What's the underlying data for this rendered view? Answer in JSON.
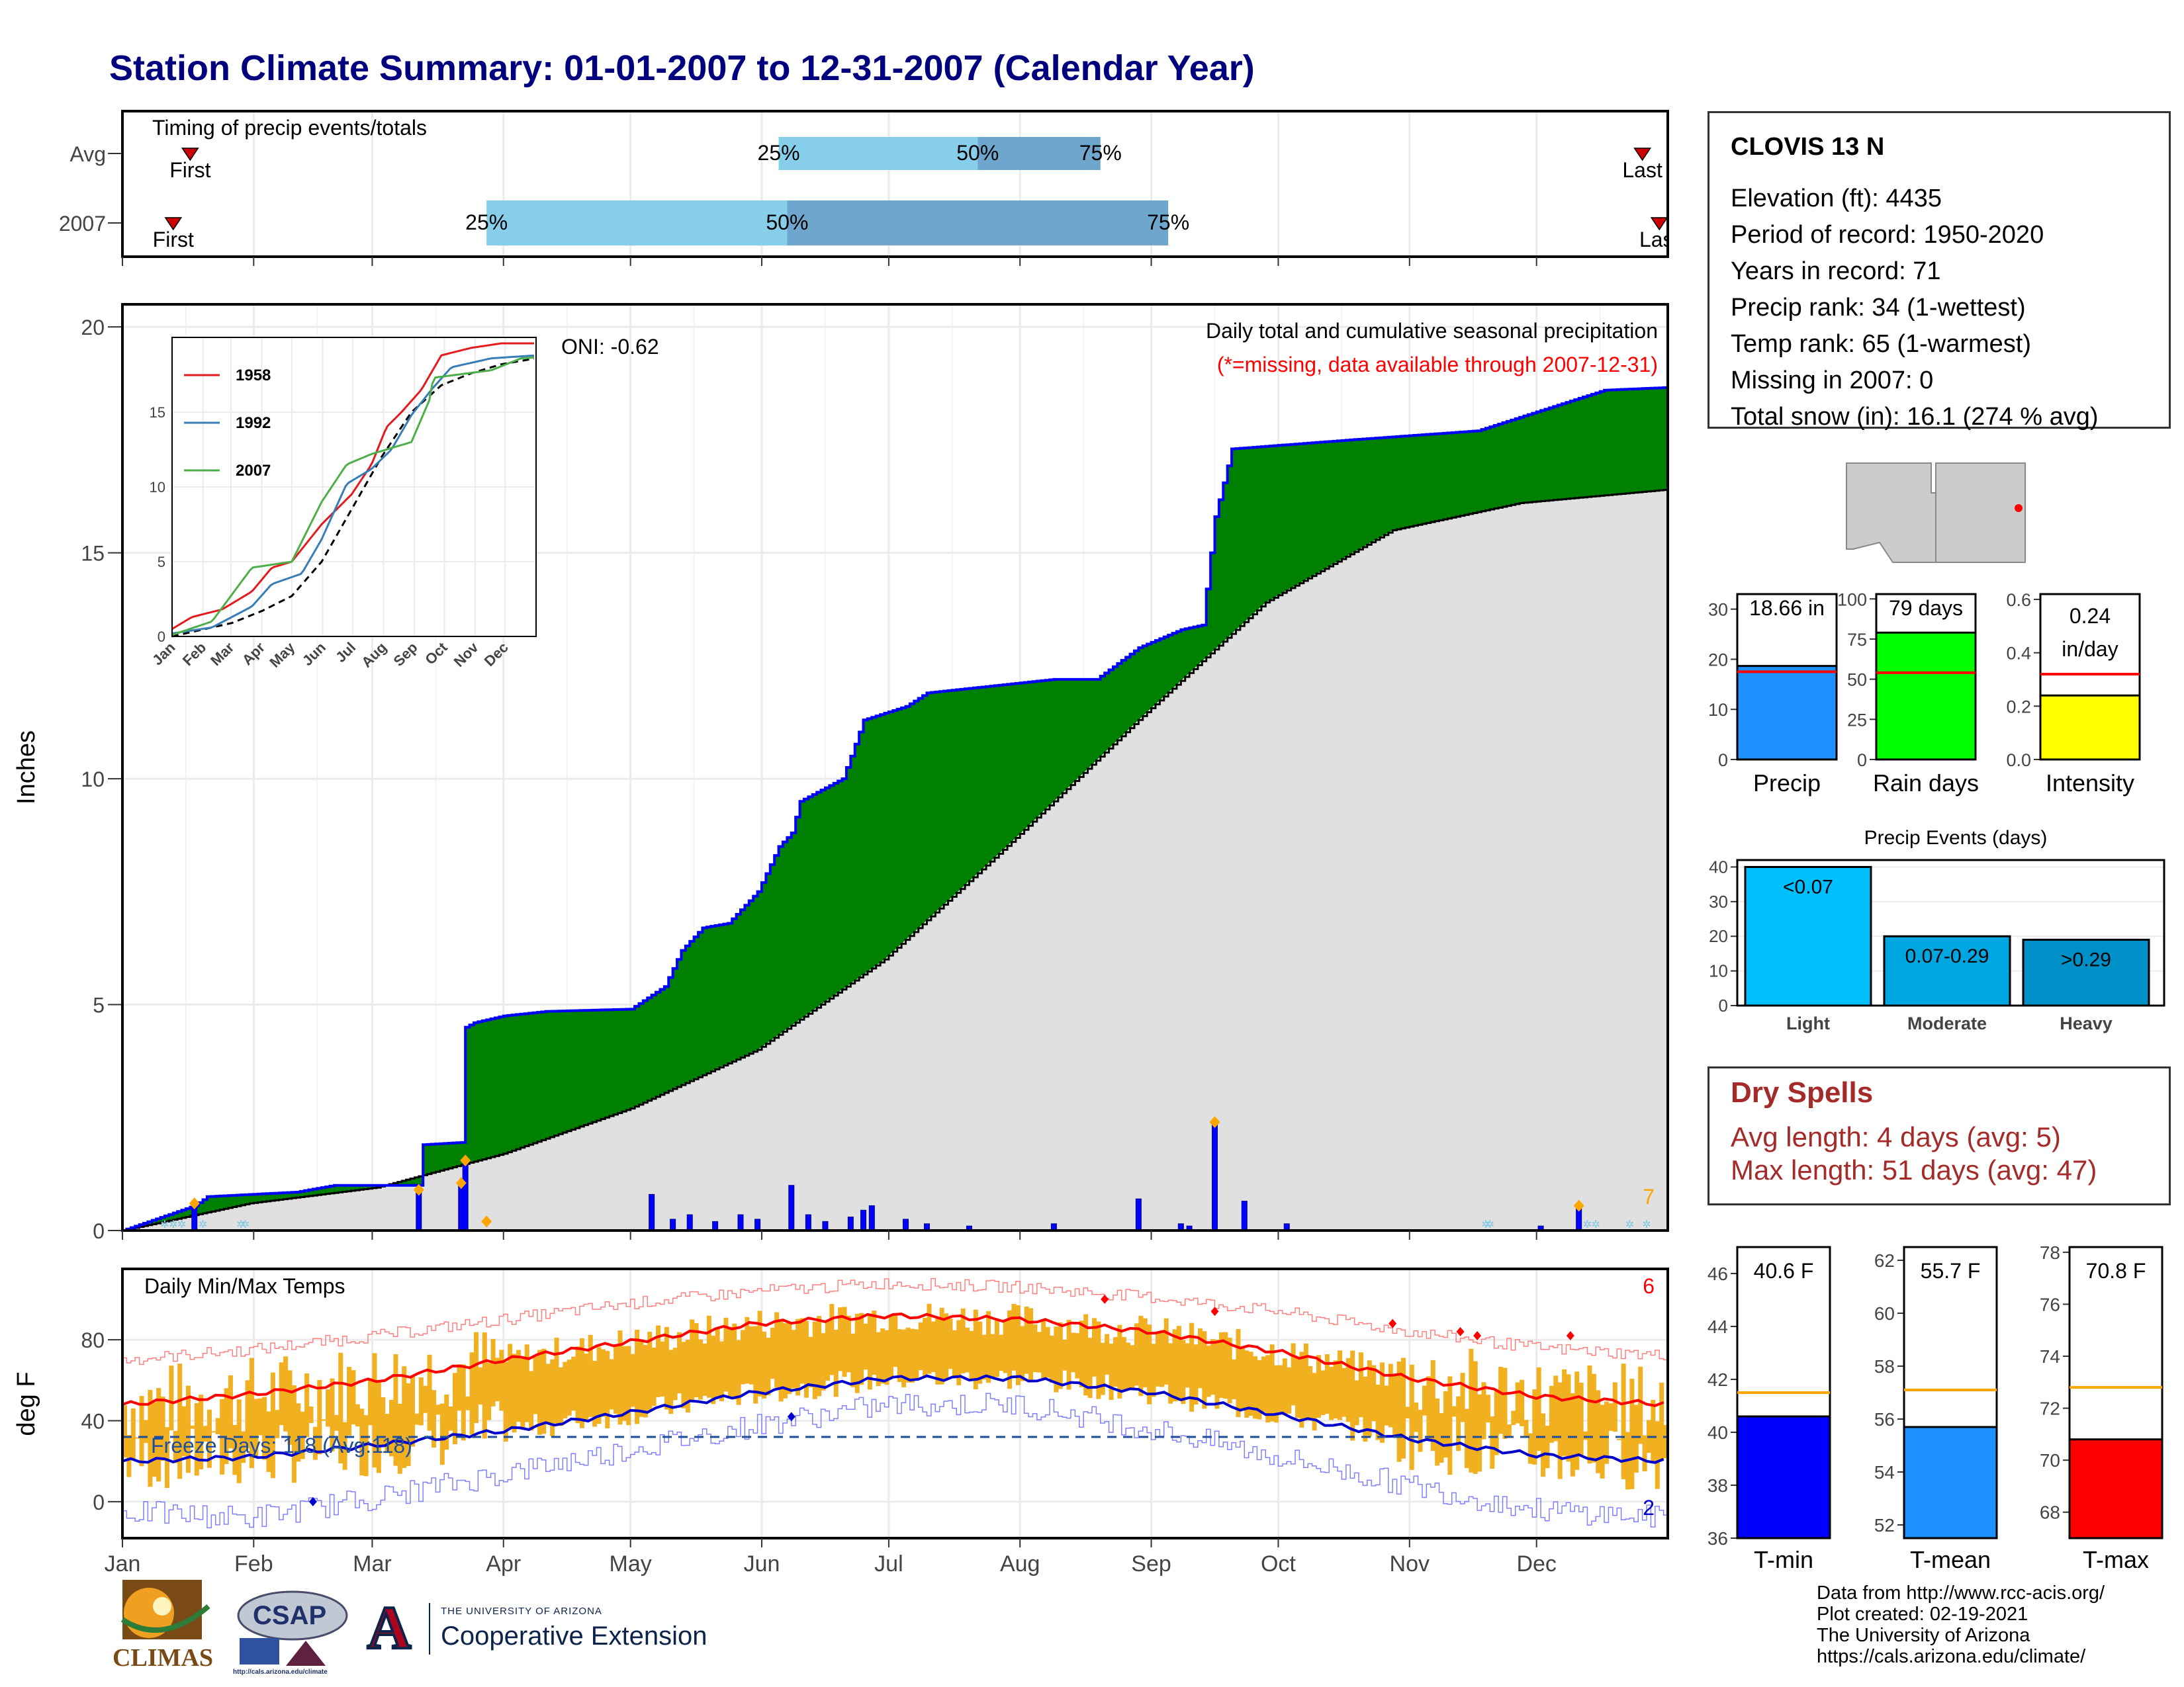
{
  "title": "Station Climate Summary: 01-01-2007 to 12-31-2007 (Calendar Year)",
  "station": {
    "name": "CLOVIS 13 N",
    "lines": [
      "Elevation (ft): 4435",
      "Period of record: 1950-2020",
      "Years in record: 71",
      "Precip rank: 34 (1-wettest)",
      "Temp rank: 65 (1-warmest)",
      "Missing in 2007: 0",
      "Total snow (in): 16.1 (274 % avg)"
    ]
  },
  "dry_spells": {
    "title": "Dry Spells",
    "avg": "Avg length: 4 days (avg: 5)",
    "max": "Max length: 51 days (avg: 47)"
  },
  "credits": [
    "Data from http://www.rcc-acis.org/",
    "Plot created: 02-19-2021",
    "The University of Arizona",
    "https://cals.arizona.edu/climate/"
  ],
  "logos": {
    "climas": "CLIMAS",
    "csap": "CSAP",
    "csap_url": "http://cals.arizona.edu/climate",
    "ua_line1": "THE UNIVERSITY OF ARIZONA",
    "ua_line2": "Cooperative Extension",
    "ua_mark": "A"
  },
  "colors": {
    "green": "#008000",
    "blue": "#0000ff",
    "orange": "#f0b020",
    "red": "#ff0000",
    "lightblue": "#87ceeb",
    "steelblue": "#6ea6cd",
    "gray": "#e0e0e0",
    "navy": "#00007f"
  },
  "chart_data": [
    {
      "id": "timing",
      "type": "bar",
      "title": "Timing of precip events/totals",
      "rows": [
        {
          "label": "Avg",
          "first_doy": 16,
          "last_doy": 359,
          "p25_doy": 155,
          "p50_doy": 202,
          "p75_doy": 231
        },
        {
          "label": "2007",
          "first_doy": 12,
          "last_doy": 363,
          "p25_doy": 86,
          "p50_doy": 157,
          "p75_doy": 247
        }
      ],
      "marker_labels": {
        "first": "First",
        "last": "Last",
        "p25": "25%",
        "p50": "50%",
        "p75": "75%"
      }
    },
    {
      "id": "precip",
      "type": "area",
      "title": "Daily total and cumulative seasonal precipitation",
      "subtitle": "(*=missing, data available through 2007-12-31)",
      "oni": "ONI: -0.62",
      "ylabel": "Inches",
      "ylim": [
        0,
        20.5
      ],
      "yticks": [
        0,
        5,
        10,
        15,
        20
      ],
      "months": [
        "Jan",
        "Feb",
        "Mar",
        "Apr",
        "May",
        "Jun",
        "Jul",
        "Aug",
        "Sep",
        "Oct",
        "Nov",
        "Dec"
      ],
      "cum_2007": [
        [
          0,
          0
        ],
        [
          17,
          0.55
        ],
        [
          20,
          0.75
        ],
        [
          41,
          0.85
        ],
        [
          50,
          1.0
        ],
        [
          70,
          1.0
        ],
        [
          71,
          1.9
        ],
        [
          80,
          1.95
        ],
        [
          81,
          4.5
        ],
        [
          83,
          4.6
        ],
        [
          90,
          4.75
        ],
        [
          100,
          4.85
        ],
        [
          120,
          4.9
        ],
        [
          128,
          5.4
        ],
        [
          132,
          6.2
        ],
        [
          137,
          6.7
        ],
        [
          143,
          6.8
        ],
        [
          145,
          7.0
        ],
        [
          150,
          7.5
        ],
        [
          155,
          8.5
        ],
        [
          158,
          8.8
        ],
        [
          160,
          9.5
        ],
        [
          166,
          9.8
        ],
        [
          170,
          10.0
        ],
        [
          172,
          10.5
        ],
        [
          175,
          11.3
        ],
        [
          185,
          11.6
        ],
        [
          190,
          11.9
        ],
        [
          200,
          12.0
        ],
        [
          210,
          12.1
        ],
        [
          220,
          12.2
        ],
        [
          230,
          12.2
        ],
        [
          240,
          12.9
        ],
        [
          250,
          13.3
        ],
        [
          255,
          13.4
        ],
        [
          258,
          15.8
        ],
        [
          262,
          17.3
        ],
        [
          290,
          17.5
        ],
        [
          320,
          17.7
        ],
        [
          350,
          18.6
        ],
        [
          365,
          18.66
        ]
      ],
      "cum_avg": [
        [
          0,
          0
        ],
        [
          30,
          0.6
        ],
        [
          60,
          0.95
        ],
        [
          90,
          1.7
        ],
        [
          120,
          2.7
        ],
        [
          150,
          4.0
        ],
        [
          180,
          6.0
        ],
        [
          210,
          8.6
        ],
        [
          240,
          11.3
        ],
        [
          270,
          13.9
        ],
        [
          300,
          15.5
        ],
        [
          330,
          16.1
        ],
        [
          365,
          16.4
        ]
      ],
      "daily": [
        [
          17,
          0.6
        ],
        [
          70,
          0.9
        ],
        [
          80,
          1.0
        ],
        [
          81,
          1.5
        ],
        [
          125,
          0.8
        ],
        [
          130,
          0.25
        ],
        [
          134,
          0.35
        ],
        [
          140,
          0.2
        ],
        [
          146,
          0.35
        ],
        [
          150,
          0.25
        ],
        [
          158,
          1.0
        ],
        [
          162,
          0.35
        ],
        [
          166,
          0.2
        ],
        [
          172,
          0.3
        ],
        [
          175,
          0.45
        ],
        [
          177,
          0.55
        ],
        [
          185,
          0.25
        ],
        [
          190,
          0.15
        ],
        [
          200,
          0.1
        ],
        [
          220,
          0.15
        ],
        [
          240,
          0.7
        ],
        [
          250,
          0.15
        ],
        [
          252,
          0.1
        ],
        [
          258,
          2.35
        ],
        [
          265,
          0.65
        ],
        [
          275,
          0.15
        ],
        [
          335,
          0.1
        ],
        [
          344,
          0.5
        ]
      ],
      "orange_count": "7",
      "inset": {
        "yticks": [
          0,
          5,
          10,
          15
        ],
        "months": [
          "Jan",
          "Feb",
          "Mar",
          "Apr",
          "May",
          "Jun",
          "Jul",
          "Aug",
          "Sep",
          "Oct",
          "Nov",
          "Dec"
        ],
        "series": [
          {
            "name": "1958",
            "color": "#e41a1c",
            "points": [
              [
                0,
                0.5
              ],
              [
                20,
                1.3
              ],
              [
                50,
                1.8
              ],
              [
                80,
                3.0
              ],
              [
                100,
                4.6
              ],
              [
                120,
                5.0
              ],
              [
                150,
                7.5
              ],
              [
                180,
                9.5
              ],
              [
                200,
                11.5
              ],
              [
                215,
                14.0
              ],
              [
                230,
                15.0
              ],
              [
                250,
                16.5
              ],
              [
                270,
                18.8
              ],
              [
                300,
                19.3
              ],
              [
                330,
                19.6
              ],
              [
                365,
                19.6
              ]
            ]
          },
          {
            "name": "1992",
            "color": "#377eb8",
            "points": [
              [
                0,
                0.2
              ],
              [
                40,
                0.6
              ],
              [
                80,
                2.0
              ],
              [
                100,
                3.5
              ],
              [
                130,
                4.2
              ],
              [
                150,
                6.5
              ],
              [
                175,
                10.2
              ],
              [
                200,
                11.2
              ],
              [
                220,
                12.5
              ],
              [
                240,
                14.8
              ],
              [
                260,
                16.5
              ],
              [
                280,
                18.0
              ],
              [
                320,
                18.6
              ],
              [
                365,
                18.8
              ]
            ]
          },
          {
            "name": "2007",
            "color": "#4daf4a",
            "points": [
              [
                0,
                0.1
              ],
              [
                40,
                1.0
              ],
              [
                80,
                4.6
              ],
              [
                120,
                5.0
              ],
              [
                150,
                9.0
              ],
              [
                175,
                11.5
              ],
              [
                200,
                12.2
              ],
              [
                240,
                13.0
              ],
              [
                258,
                15.8
              ],
              [
                262,
                17.3
              ],
              [
                320,
                17.8
              ],
              [
                350,
                18.6
              ],
              [
                365,
                18.66
              ]
            ]
          }
        ],
        "avg": [
          [
            0,
            0
          ],
          [
            60,
            0.9
          ],
          [
            90,
            1.7
          ],
          [
            120,
            2.7
          ],
          [
            150,
            5
          ],
          [
            180,
            8.5
          ],
          [
            210,
            12
          ],
          [
            240,
            15
          ],
          [
            270,
            16.8
          ],
          [
            300,
            17.6
          ],
          [
            330,
            18.2
          ],
          [
            365,
            18.6
          ]
        ]
      }
    },
    {
      "id": "temps",
      "type": "line",
      "title": "Daily Min/Max Temps",
      "ylabel": "deg F",
      "yticks": [
        0,
        40,
        80
      ],
      "ylim": [
        -18,
        115
      ],
      "freeze_label": "Freeze Days: 118 (Avg:118)",
      "freeze_line": 32,
      "high_count": "6",
      "low_count": "2",
      "avg_max": [
        [
          0,
          48
        ],
        [
          30,
          53
        ],
        [
          60,
          60
        ],
        [
          90,
          70
        ],
        [
          120,
          79
        ],
        [
          150,
          88
        ],
        [
          181,
          92
        ],
        [
          212,
          90
        ],
        [
          243,
          84
        ],
        [
          273,
          74
        ],
        [
          304,
          61
        ],
        [
          334,
          52
        ],
        [
          365,
          48
        ]
      ],
      "avg_min": [
        [
          0,
          20
        ],
        [
          30,
          22
        ],
        [
          60,
          28
        ],
        [
          90,
          35
        ],
        [
          120,
          44
        ],
        [
          150,
          54
        ],
        [
          181,
          61
        ],
        [
          212,
          61
        ],
        [
          243,
          54
        ],
        [
          273,
          43
        ],
        [
          304,
          31
        ],
        [
          334,
          23
        ],
        [
          365,
          20
        ]
      ],
      "rec_max": [
        [
          0,
          70
        ],
        [
          30,
          75
        ],
        [
          60,
          82
        ],
        [
          90,
          90
        ],
        [
          120,
          98
        ],
        [
          150,
          104
        ],
        [
          181,
          108
        ],
        [
          212,
          106
        ],
        [
          243,
          101
        ],
        [
          273,
          94
        ],
        [
          304,
          84
        ],
        [
          334,
          76
        ],
        [
          365,
          72
        ]
      ],
      "rec_min": [
        [
          0,
          -5
        ],
        [
          30,
          -8
        ],
        [
          60,
          2
        ],
        [
          90,
          14
        ],
        [
          120,
          26
        ],
        [
          150,
          38
        ],
        [
          181,
          48
        ],
        [
          212,
          48
        ],
        [
          243,
          36
        ],
        [
          273,
          22
        ],
        [
          304,
          8
        ],
        [
          334,
          -4
        ],
        [
          365,
          -8
        ]
      ]
    },
    {
      "id": "summary_bars",
      "type": "bar",
      "panels": [
        {
          "label": "Precip",
          "value": 18.66,
          "text": "18.66 in",
          "avg": 17.5,
          "ymax": 33,
          "yticks": [
            0,
            10,
            20,
            30
          ],
          "color": "#1e90ff"
        },
        {
          "label": "Rain days",
          "value": 79,
          "text": "79 days",
          "avg": 54,
          "ymax": 103,
          "yticks": [
            0,
            25,
            50,
            75,
            100
          ],
          "color": "#00ff00"
        },
        {
          "label": "Intensity",
          "value": 0.24,
          "text": "0.24 in/day",
          "avg": 0.32,
          "ymax": 0.62,
          "yticks": [
            0.0,
            0.2,
            0.4,
            0.6
          ],
          "color": "#ffff00"
        }
      ]
    },
    {
      "id": "events",
      "type": "bar",
      "title": "Precip Events (days)",
      "categories": [
        "Light",
        "Moderate",
        "Heavy"
      ],
      "values": [
        40,
        20,
        19
      ],
      "labels": [
        "<0.07",
        "0.07-0.29",
        ">0.29"
      ],
      "yticks": [
        0,
        10,
        20,
        30,
        40
      ],
      "ymax": 42,
      "colors": [
        "#00bfff",
        "#00a6e0",
        "#0090c8"
      ]
    },
    {
      "id": "temp_bars",
      "type": "bar",
      "panels": [
        {
          "label": "T-min",
          "value": 40.6,
          "text": "40.6 F",
          "avg": 41.5,
          "ymin": 36,
          "ymax": 47,
          "yticks": [
            36,
            38,
            40,
            42,
            44,
            46
          ],
          "color": "#0000ff"
        },
        {
          "label": "T-mean",
          "value": 55.7,
          "text": "55.7 F",
          "avg": 57.1,
          "ymin": 51.5,
          "ymax": 62.5,
          "yticks": [
            52,
            54,
            56,
            58,
            60,
            62
          ],
          "color": "#1e90ff"
        },
        {
          "label": "T-max",
          "value": 70.8,
          "text": "70.8 F",
          "avg": 72.8,
          "ymin": 67,
          "ymax": 78.2,
          "yticks": [
            68,
            70,
            72,
            74,
            76,
            78
          ],
          "color": "#ff0000"
        }
      ]
    }
  ]
}
